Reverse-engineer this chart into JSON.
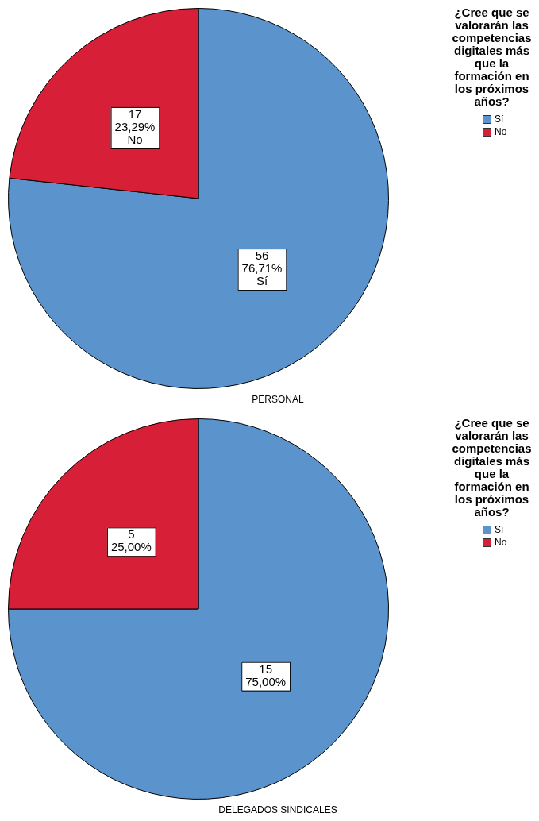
{
  "chart_data": [
    {
      "type": "pie",
      "xlabel": "PERSONAL",
      "legend_title": "¿Cree que se valorarán las competencias digitales más que la formación en los próximos años?",
      "legend": "top right",
      "categories": [
        "Sí",
        "No"
      ],
      "values": [
        56,
        17
      ],
      "colors": [
        "#5b93cc",
        "#d81f38"
      ],
      "value_labels": [
        "56\n76,71%\nSí",
        "17\n23,29%\nNo"
      ]
    },
    {
      "type": "pie",
      "xlabel": "DELEGADOS SINDICALES",
      "legend_title": "¿Cree que se valorarán las competencias digitales más que la formación en los próximos años?",
      "legend": "top right",
      "categories": [
        "Sí",
        "No"
      ],
      "values": [
        15,
        5
      ],
      "colors": [
        "#5b93cc",
        "#d81f38"
      ],
      "value_labels": [
        "15\n75,00%",
        "5\n25,00%"
      ]
    }
  ]
}
